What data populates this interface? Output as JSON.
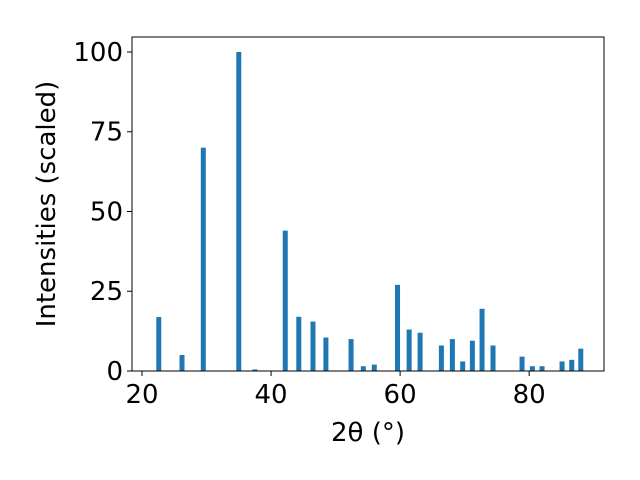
{
  "chart_data": {
    "type": "bar",
    "x_label": "2θ (°)",
    "y_label": "Intensities (scaled)",
    "x": [
      22.6,
      26.2,
      29.5,
      35.0,
      37.5,
      42.2,
      44.3,
      46.5,
      48.5,
      52.4,
      54.3,
      56.0,
      59.6,
      61.4,
      63.1,
      66.4,
      68.1,
      69.7,
      71.2,
      72.7,
      74.4,
      78.9,
      80.5,
      82.0,
      85.1,
      86.6,
      88.0
    ],
    "values": [
      16.9,
      5,
      70,
      100,
      0.5,
      44,
      17,
      15.5,
      10.5,
      10,
      1.5,
      2,
      27,
      13,
      12,
      8,
      10,
      3,
      9.5,
      19.5,
      8,
      4.5,
      1.5,
      1.5,
      3,
      3.5,
      7
    ],
    "color": "#1f77b4",
    "xlim": [
      18.45,
      91.6
    ],
    "ylim": [
      0,
      104.7
    ],
    "xticks": [
      20,
      40,
      60,
      80
    ],
    "yticks": [
      0,
      25,
      50,
      75,
      100
    ],
    "grid": false
  }
}
